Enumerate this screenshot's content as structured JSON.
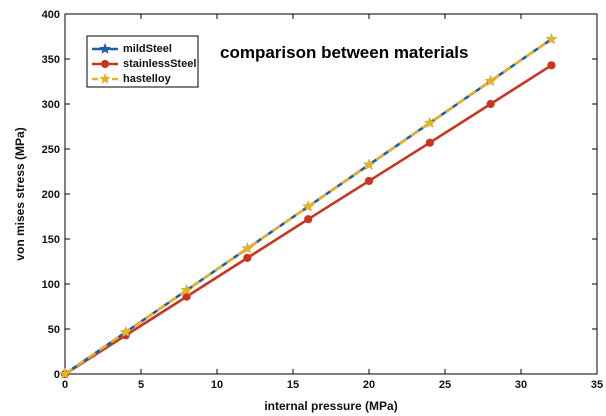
{
  "chart_data": {
    "type": "line",
    "title": "comparison between materials",
    "xlabel": "internal pressure (MPa)",
    "ylabel": "von mises stress (MPa)",
    "xlim": [
      0,
      35
    ],
    "ylim": [
      0,
      400
    ],
    "xticks": [
      0,
      5,
      10,
      15,
      20,
      25,
      30,
      35
    ],
    "yticks": [
      0,
      50,
      100,
      150,
      200,
      250,
      300,
      350,
      400
    ],
    "grid": false,
    "legend_position": "top-left",
    "x": [
      0,
      4,
      8,
      12,
      16,
      20,
      24,
      28,
      32
    ],
    "series": [
      {
        "name": "mildSteel",
        "color": "#1f5fa8",
        "marker": "star",
        "line_style": "solid",
        "values": [
          0,
          46.5,
          93,
          139.5,
          186,
          232.5,
          279,
          325.5,
          372
        ]
      },
      {
        "name": "stainlessSteel",
        "color": "#c8361f",
        "marker": "circle",
        "line_style": "solid",
        "values": [
          0,
          43,
          86,
          129,
          172,
          214.5,
          257,
          300,
          343
        ]
      },
      {
        "name": "hastelloy",
        "color": "#e8b323",
        "marker": "star",
        "line_style": "dashed",
        "values": [
          0,
          46.5,
          93,
          139.5,
          186,
          232.5,
          279,
          325.5,
          372
        ]
      }
    ]
  }
}
